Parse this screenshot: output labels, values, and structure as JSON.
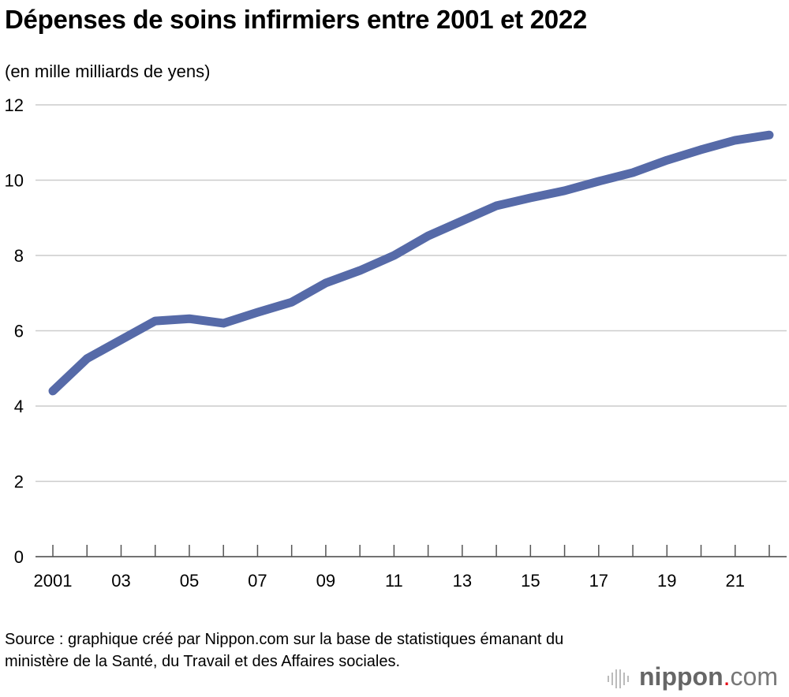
{
  "chart_data": {
    "type": "line",
    "title": "Dépenses de soins infirmiers entre 2001 et 2022",
    "ylabel": "(en mille milliards de yens)",
    "xlabel": "",
    "x": [
      2001,
      2002,
      2003,
      2004,
      2005,
      2006,
      2007,
      2008,
      2009,
      2010,
      2011,
      2012,
      2013,
      2014,
      2015,
      2016,
      2017,
      2018,
      2019,
      2020,
      2021,
      2022
    ],
    "values": [
      4.4,
      5.26,
      5.76,
      6.26,
      6.32,
      6.2,
      6.49,
      6.76,
      7.27,
      7.6,
      8.0,
      8.52,
      8.92,
      9.32,
      9.53,
      9.72,
      9.97,
      10.2,
      10.53,
      10.81,
      11.06,
      11.2
    ],
    "ylim": [
      0,
      12
    ],
    "yticks": [
      "0",
      "2",
      "4",
      "6",
      "8",
      "10",
      "12"
    ],
    "xtick_labels": [
      "2001",
      "03",
      "05",
      "07",
      "09",
      "11",
      "13",
      "15",
      "17",
      "19",
      "21"
    ],
    "grid": "horizontal",
    "line_color": "#566aa8",
    "grid_color": "#cccccc"
  },
  "source": "Source : graphique créé par Nippon.com sur la base de statistiques émanant du ministère de la Santé, du Travail et des Affaires sociales.",
  "logo": {
    "text": "nippon.com",
    "name": "nippon",
    "dot": ".",
    "suffix": "com",
    "dot_color": "#e60012"
  }
}
